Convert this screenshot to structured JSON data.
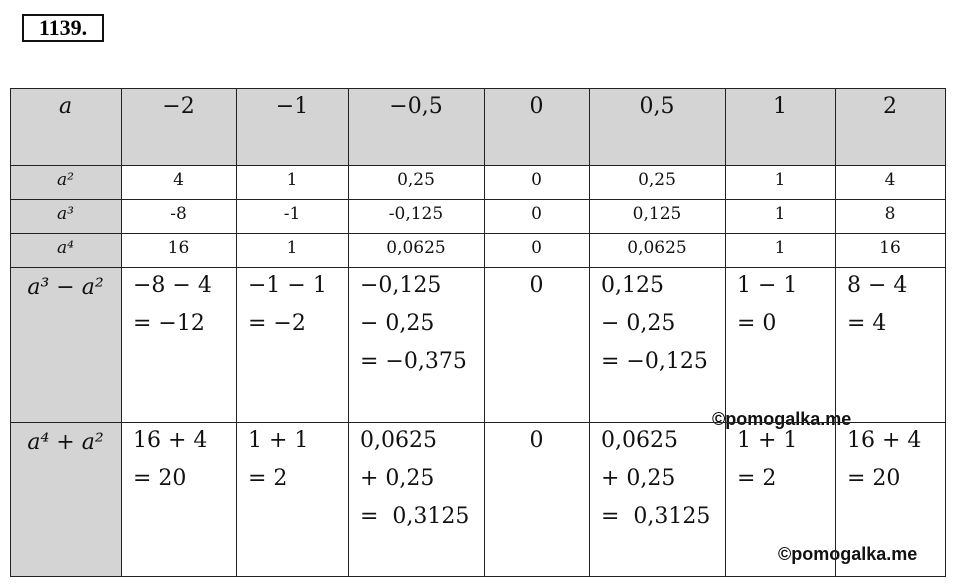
{
  "problem_number": "1139.",
  "table": {
    "header": [
      "a",
      "−2",
      "−1",
      "−0,5",
      "0",
      "0,5",
      "1",
      "2"
    ],
    "rows": [
      {
        "label": "a²",
        "cells": [
          "4",
          "1",
          "0,25",
          "0",
          "0,25",
          "1",
          "4"
        ]
      },
      {
        "label": "a³",
        "cells": [
          "-8",
          "-1",
          "-0,125",
          "0",
          "0,125",
          "1",
          "8"
        ]
      },
      {
        "label": "a⁴",
        "cells": [
          "16",
          "1",
          "0,0625",
          "0",
          "0,0625",
          "1",
          "16"
        ]
      },
      {
        "label": "a³ − a²",
        "cells": [
          [
            "−8 − 4",
            "= −12"
          ],
          [
            "−1 − 1",
            "= −2"
          ],
          [
            "−0,125",
            "− 0,25",
            "= −0,375"
          ],
          [
            "0"
          ],
          [
            "0,125",
            "− 0,25",
            "= −0,125"
          ],
          [
            "1 − 1",
            "= 0"
          ],
          [
            "8 − 4",
            "= 4"
          ]
        ]
      },
      {
        "label": "a⁴ + a²",
        "cells": [
          [
            "16 + 4",
            "= 20"
          ],
          [
            "1 + 1",
            "= 2"
          ],
          [
            "0,0625",
            "+ 0,25",
            "=  0,3125"
          ],
          [
            "0"
          ],
          [
            "0,0625",
            "+ 0,25",
            "=  0,3125"
          ],
          [
            "1 + 1",
            "= 2"
          ],
          [
            "16 + 4",
            "= 20"
          ]
        ]
      }
    ]
  },
  "watermarks": [
    "©pomogalka.me",
    "©pomogalka.me"
  ]
}
